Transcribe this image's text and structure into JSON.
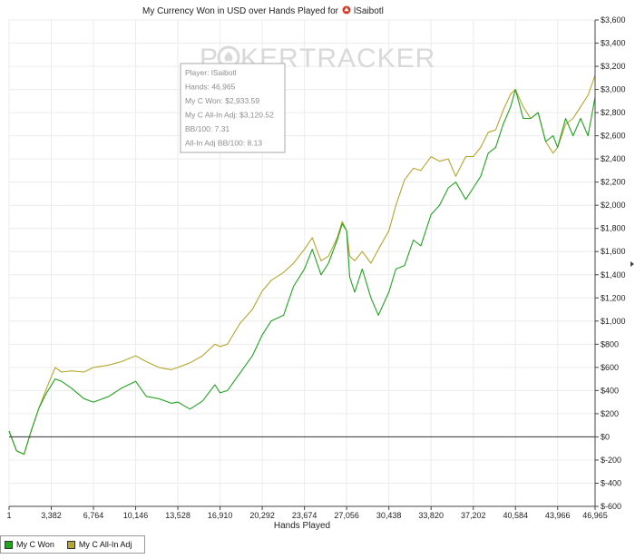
{
  "chart_data": {
    "type": "line",
    "title": "My Currency Won in USD over Hands Played for",
    "player": "lSaibotl",
    "xlabel": "Hands Played",
    "ylabel": "",
    "x_ticks": [
      "1",
      "3,382",
      "6,764",
      "10,146",
      "13,528",
      "16,910",
      "20,292",
      "23,674",
      "27,056",
      "30,438",
      "33,820",
      "37,202",
      "40,584",
      "43,966",
      "46,965"
    ],
    "x_tick_values": [
      1,
      3382,
      6764,
      10146,
      13528,
      16910,
      20292,
      23674,
      27056,
      30438,
      33820,
      37202,
      40584,
      43966,
      46965
    ],
    "y_ticks": [
      "$3,600",
      "$3,400",
      "$3,200",
      "$3,000",
      "$2,800",
      "$2,600",
      "$2,400",
      "$2,200",
      "$2,000",
      "$1,800",
      "$1,600",
      "$1,400",
      "$1,200",
      "$1,000",
      "$800",
      "$600",
      "$400",
      "$200",
      "$0",
      "$-200",
      "$-400",
      "$-600"
    ],
    "y_tick_values": [
      3600,
      3400,
      3200,
      3000,
      2800,
      2600,
      2400,
      2200,
      2000,
      1800,
      1600,
      1400,
      1200,
      1000,
      800,
      600,
      400,
      200,
      0,
      -200,
      -400,
      -600
    ],
    "xlim": [
      1,
      46965
    ],
    "ylim": [
      -600,
      3600
    ],
    "grid": true,
    "legend_position": "bottom-left",
    "series": [
      {
        "name": "My C Won",
        "color": "#22a322",
        "x": [
          1,
          600,
          1200,
          1800,
          2400,
          3000,
          3700,
          4200,
          5000,
          6000,
          6764,
          8000,
          9000,
          10146,
          11000,
          12000,
          13000,
          13528,
          14500,
          15500,
          16500,
          16910,
          17500,
          18500,
          19500,
          20292,
          21000,
          22000,
          22800,
          23674,
          24300,
          25000,
          25600,
          26300,
          26700,
          27056,
          27300,
          27700,
          28300,
          29000,
          29600,
          30438,
          31000,
          31700,
          32400,
          33000,
          33820,
          34500,
          35200,
          35800,
          36600,
          37202,
          37800,
          38400,
          39000,
          39600,
          40200,
          40584,
          41200,
          41800,
          42400,
          43000,
          43600,
          43966,
          44600,
          45200,
          45800,
          46400,
          46965
        ],
        "y": [
          50,
          -120,
          -150,
          60,
          250,
          380,
          500,
          480,
          420,
          330,
          300,
          350,
          420,
          480,
          350,
          330,
          290,
          300,
          240,
          310,
          450,
          380,
          400,
          550,
          700,
          880,
          1000,
          1050,
          1300,
          1450,
          1620,
          1400,
          1500,
          1700,
          1840,
          1780,
          1380,
          1250,
          1450,
          1200,
          1050,
          1250,
          1450,
          1480,
          1700,
          1650,
          1920,
          2000,
          2150,
          2200,
          2050,
          2150,
          2250,
          2450,
          2500,
          2700,
          2850,
          3000,
          2750,
          2750,
          2800,
          2550,
          2600,
          2500,
          2750,
          2600,
          2750,
          2600,
          2934
        ]
      },
      {
        "name": "My C All-In Adj",
        "color": "#b5a62c",
        "x": [
          1,
          600,
          1200,
          1800,
          2400,
          3000,
          3700,
          4200,
          5000,
          6000,
          6764,
          8000,
          9000,
          10146,
          11000,
          12000,
          13000,
          13528,
          14500,
          15500,
          16500,
          16910,
          17500,
          18500,
          19500,
          20292,
          21000,
          22000,
          22800,
          23674,
          24300,
          25000,
          25600,
          26300,
          26700,
          27056,
          27300,
          27700,
          28300,
          29000,
          29600,
          30438,
          31000,
          31700,
          32400,
          33000,
          33820,
          34500,
          35200,
          35800,
          36600,
          37202,
          37800,
          38400,
          39000,
          39600,
          40200,
          40584,
          41200,
          41800,
          42400,
          43000,
          43600,
          43966,
          44600,
          45200,
          45800,
          46400,
          46965
        ],
        "y": [
          50,
          -120,
          -150,
          60,
          250,
          420,
          600,
          560,
          570,
          560,
          600,
          620,
          650,
          700,
          650,
          600,
          580,
          600,
          640,
          700,
          800,
          780,
          800,
          980,
          1100,
          1260,
          1350,
          1420,
          1500,
          1620,
          1720,
          1520,
          1560,
          1720,
          1860,
          1780,
          1560,
          1520,
          1600,
          1500,
          1620,
          1780,
          2000,
          2220,
          2320,
          2300,
          2420,
          2380,
          2400,
          2250,
          2420,
          2420,
          2500,
          2630,
          2650,
          2820,
          2960,
          3000,
          2850,
          2750,
          2800,
          2550,
          2450,
          2500,
          2700,
          2750,
          2850,
          2950,
          3121
        ]
      }
    ],
    "tooltip": {
      "lines": [
        "Player: lSaibotl",
        "Hands: 46,965",
        "My C Won: $2,933.59",
        "My C All-In Adj: $3,120.52",
        "BB/100: 7.31",
        "All-In Adj BB/100: 8.13"
      ]
    }
  },
  "watermark": {
    "left": "P",
    "mid": "KER",
    "right": "TRACKER"
  },
  "legend": {
    "won_label": "My C Won",
    "adj_label": "My C All-In Adj"
  }
}
